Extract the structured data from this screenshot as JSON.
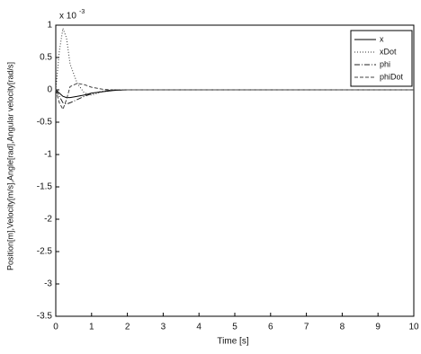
{
  "chart_data": {
    "type": "line",
    "xlabel": "Time [s]",
    "ylabel": "Position[m],Velocity[m/s],Angle[rad],Angular velocity[rad/s]",
    "y_exponent_base": "x 10",
    "y_exponent": "-3",
    "x": [
      0,
      0.1,
      0.2,
      0.3,
      0.4,
      0.6,
      0.8,
      1,
      1.3,
      1.6,
      2,
      3,
      10
    ],
    "series": [
      {
        "name": "x",
        "color": "#000000",
        "dash": "none",
        "values": [
          0,
          -0.05,
          -0.1,
          -0.12,
          -0.12,
          -0.1,
          -0.08,
          -0.05,
          -0.03,
          -0.01,
          0,
          0,
          0
        ]
      },
      {
        "name": "xDot",
        "color": "#333333",
        "dash": "1,2",
        "values": [
          0,
          0.6,
          0.95,
          0.8,
          0.4,
          0.1,
          -0.05,
          -0.08,
          -0.03,
          0,
          0,
          0,
          0
        ]
      },
      {
        "name": "phi",
        "color": "#222222",
        "dash": "6,2,1,2",
        "values": [
          0,
          -0.1,
          -0.2,
          -0.22,
          -0.2,
          -0.15,
          -0.1,
          -0.06,
          -0.02,
          0,
          0,
          0,
          0
        ]
      },
      {
        "name": "phiDot",
        "color": "#444444",
        "dash": "4,2",
        "values": [
          0,
          -0.2,
          -0.3,
          -0.15,
          0.05,
          0.1,
          0.08,
          0.04,
          0.01,
          0,
          0,
          0,
          0
        ]
      }
    ],
    "xlim": [
      0,
      10
    ],
    "xticks": [
      0,
      1,
      2,
      3,
      4,
      5,
      6,
      7,
      8,
      9,
      10
    ],
    "ylim": [
      -3.5,
      1
    ],
    "yticks": [
      -3.5,
      -3,
      -2.5,
      -2,
      -1.5,
      -1,
      -0.5,
      0,
      0.5,
      1
    ],
    "legend": "top-right",
    "grid": false
  }
}
